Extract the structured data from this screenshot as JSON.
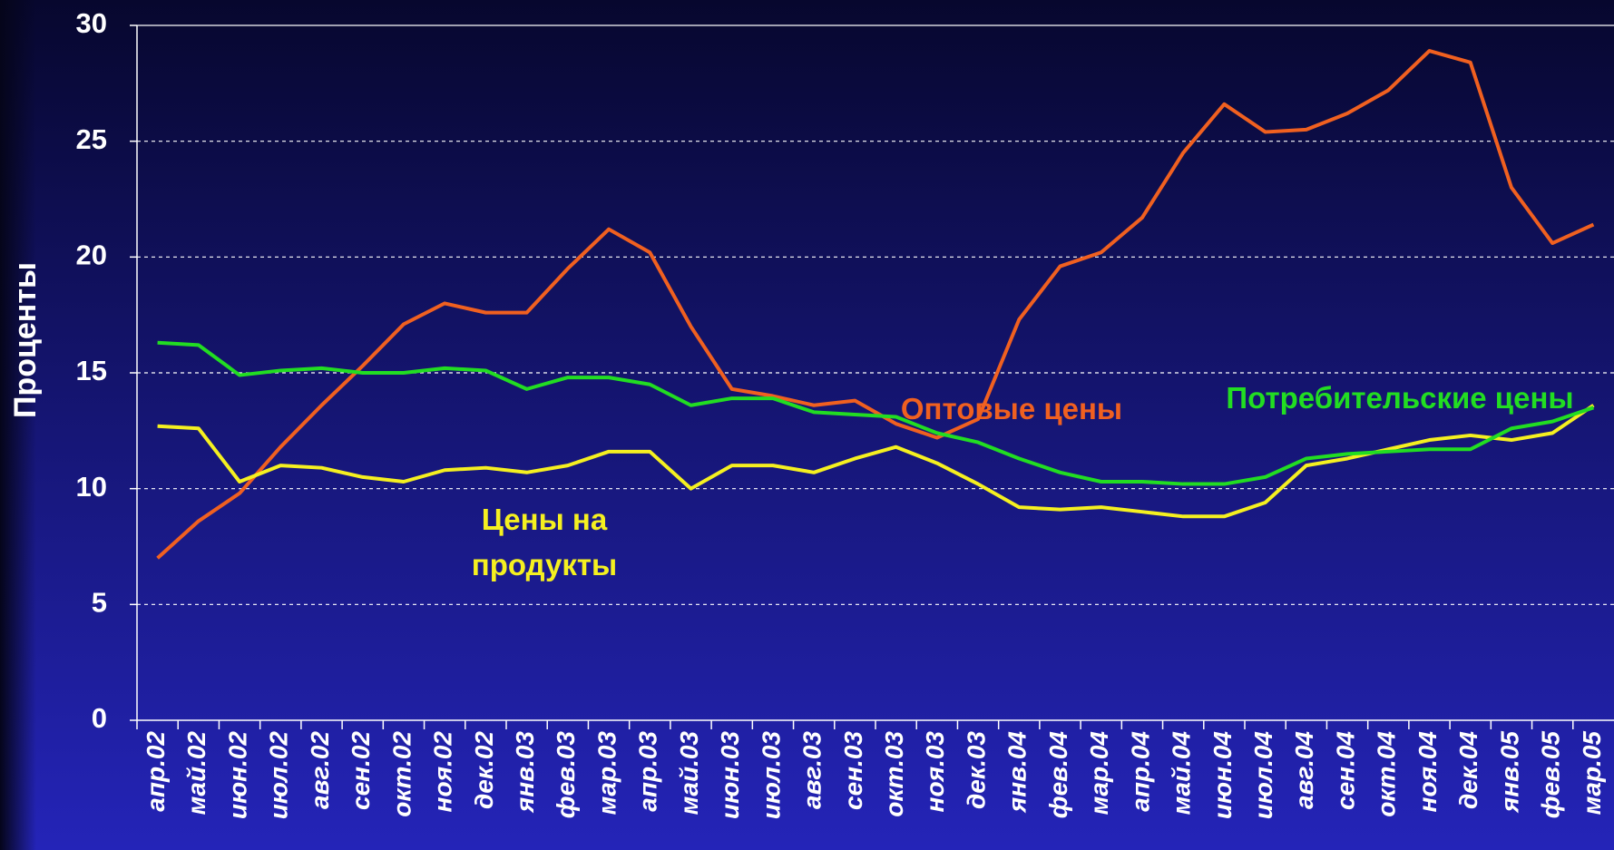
{
  "chart_data": {
    "type": "line",
    "ylabel": "Проценты",
    "categories": [
      "апр.02",
      "май.02",
      "июн.02",
      "июл.02",
      "авг.02",
      "сен.02",
      "окт.02",
      "ноя.02",
      "дек.02",
      "янв.03",
      "фев.03",
      "мар.03",
      "апр.03",
      "май.03",
      "июн.03",
      "июл.03",
      "авг.03",
      "сен.03",
      "окт.03",
      "ноя.03",
      "дек.03",
      "янв.04",
      "фев.04",
      "мар.04",
      "апр.04",
      "май.04",
      "июн.04",
      "июл.04",
      "авг.04",
      "сен.04",
      "окт.04",
      "ноя.04",
      "дек.04",
      "янв.05",
      "фев.05",
      "мар.05"
    ],
    "series": [
      {
        "name": "Оптовые цены",
        "color": "#f06020",
        "values": [
          7.0,
          8.6,
          9.8,
          11.8,
          13.6,
          15.3,
          17.1,
          18.0,
          17.6,
          17.6,
          19.5,
          21.2,
          20.2,
          17.0,
          14.3,
          14.0,
          13.6,
          13.8,
          12.8,
          12.2,
          13.0,
          17.3,
          19.6,
          20.2,
          21.7,
          24.5,
          26.6,
          25.4,
          25.5,
          26.2,
          27.2,
          28.9,
          28.4,
          23.0,
          20.6,
          21.4
        ]
      },
      {
        "name": "Потребительские цены",
        "color": "#22dd22",
        "values": [
          16.3,
          16.2,
          14.9,
          15.1,
          15.2,
          15.0,
          15.0,
          15.2,
          15.1,
          14.3,
          14.8,
          14.8,
          14.5,
          13.6,
          13.9,
          13.9,
          13.3,
          13.2,
          13.1,
          12.4,
          12.0,
          11.3,
          10.7,
          10.3,
          10.3,
          10.2,
          10.2,
          10.5,
          11.3,
          11.5,
          11.6,
          11.7,
          11.7,
          12.6,
          12.9,
          13.5
        ]
      },
      {
        "name": "Цены на продукты",
        "color": "#f5f020",
        "values": [
          12.7,
          12.6,
          10.3,
          11.0,
          10.9,
          10.5,
          10.3,
          10.8,
          10.9,
          10.7,
          11.0,
          11.6,
          11.6,
          10.0,
          11.0,
          11.0,
          10.7,
          11.3,
          11.8,
          11.1,
          10.2,
          9.2,
          9.1,
          9.2,
          9.0,
          8.8,
          8.8,
          9.4,
          11.0,
          11.3,
          11.7,
          12.1,
          12.3,
          12.1,
          12.4,
          13.6
        ]
      }
    ],
    "ylim": [
      0,
      30
    ],
    "yticks": [
      0,
      5,
      10,
      15,
      20,
      25,
      30
    ],
    "grid": true
  }
}
